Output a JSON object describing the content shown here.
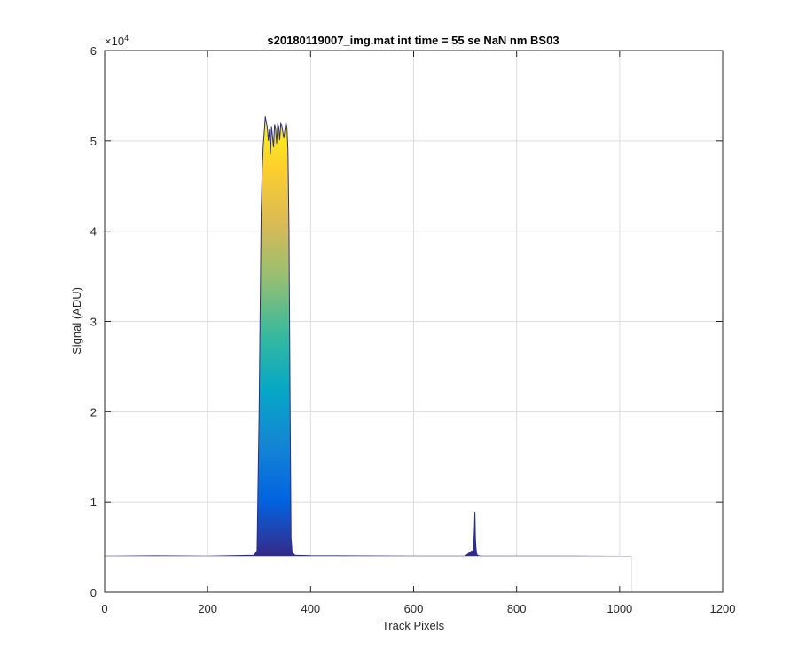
{
  "chart_data": {
    "type": "area",
    "title": "s20180119007_img.mat int time = 55 se  NaN nm BS03",
    "xlabel": "Track Pixels",
    "ylabel": "Signal (ADU)",
    "y_exponent_base": "×10",
    "y_exponent_power": "4",
    "xlim": [
      0,
      1200
    ],
    "ylim": [
      0,
      60000
    ],
    "x_ticks": [
      0,
      200,
      400,
      600,
      800,
      1000,
      1200
    ],
    "x_tick_labels": [
      "0",
      "200",
      "400",
      "600",
      "800",
      "1000",
      "1200"
    ],
    "y_ticks": [
      0,
      10000,
      20000,
      30000,
      40000,
      50000,
      60000
    ],
    "y_tick_labels": [
      "0",
      "1",
      "2",
      "3",
      "4",
      "5",
      "6"
    ],
    "grid": true,
    "colormap": [
      "#352a87",
      "#0363e1",
      "#1485d4",
      "#06a7c6",
      "#38b99e",
      "#92bf73",
      "#d9ba56",
      "#fcce2e",
      "#f9fb0e"
    ],
    "baseline": 4000,
    "series": [
      {
        "x": [
          0,
          100,
          200,
          290,
          296,
          300,
          304,
          306,
          308,
          310,
          312,
          314,
          316,
          318,
          320,
          322,
          324,
          326,
          328,
          330,
          332,
          334,
          336,
          338,
          340,
          342,
          344,
          346,
          348,
          350,
          352,
          354,
          356,
          358,
          360,
          362,
          364,
          366,
          370,
          400,
          500,
          600,
          700,
          713,
          716,
          718,
          719,
          720,
          721,
          722,
          723,
          724,
          726,
          730,
          800,
          900,
          1000,
          1023
        ],
        "y": [
          4000,
          4040,
          4000,
          4100,
          4600,
          20000,
          42000,
          47000,
          49500,
          51000,
          52700,
          52000,
          51500,
          50000,
          51300,
          48500,
          51600,
          50500,
          49300,
          51800,
          51400,
          49700,
          51800,
          51600,
          50100,
          51900,
          51700,
          51000,
          50300,
          51200,
          52000,
          51500,
          49000,
          40000,
          22000,
          6000,
          4500,
          4300,
          4100,
          4050,
          4020,
          4000,
          4000,
          4600,
          4400,
          7000,
          8900,
          6000,
          5000,
          4400,
          4200,
          4100,
          4050,
          4000,
          4000,
          4000,
          3980,
          3980
        ]
      }
    ]
  }
}
